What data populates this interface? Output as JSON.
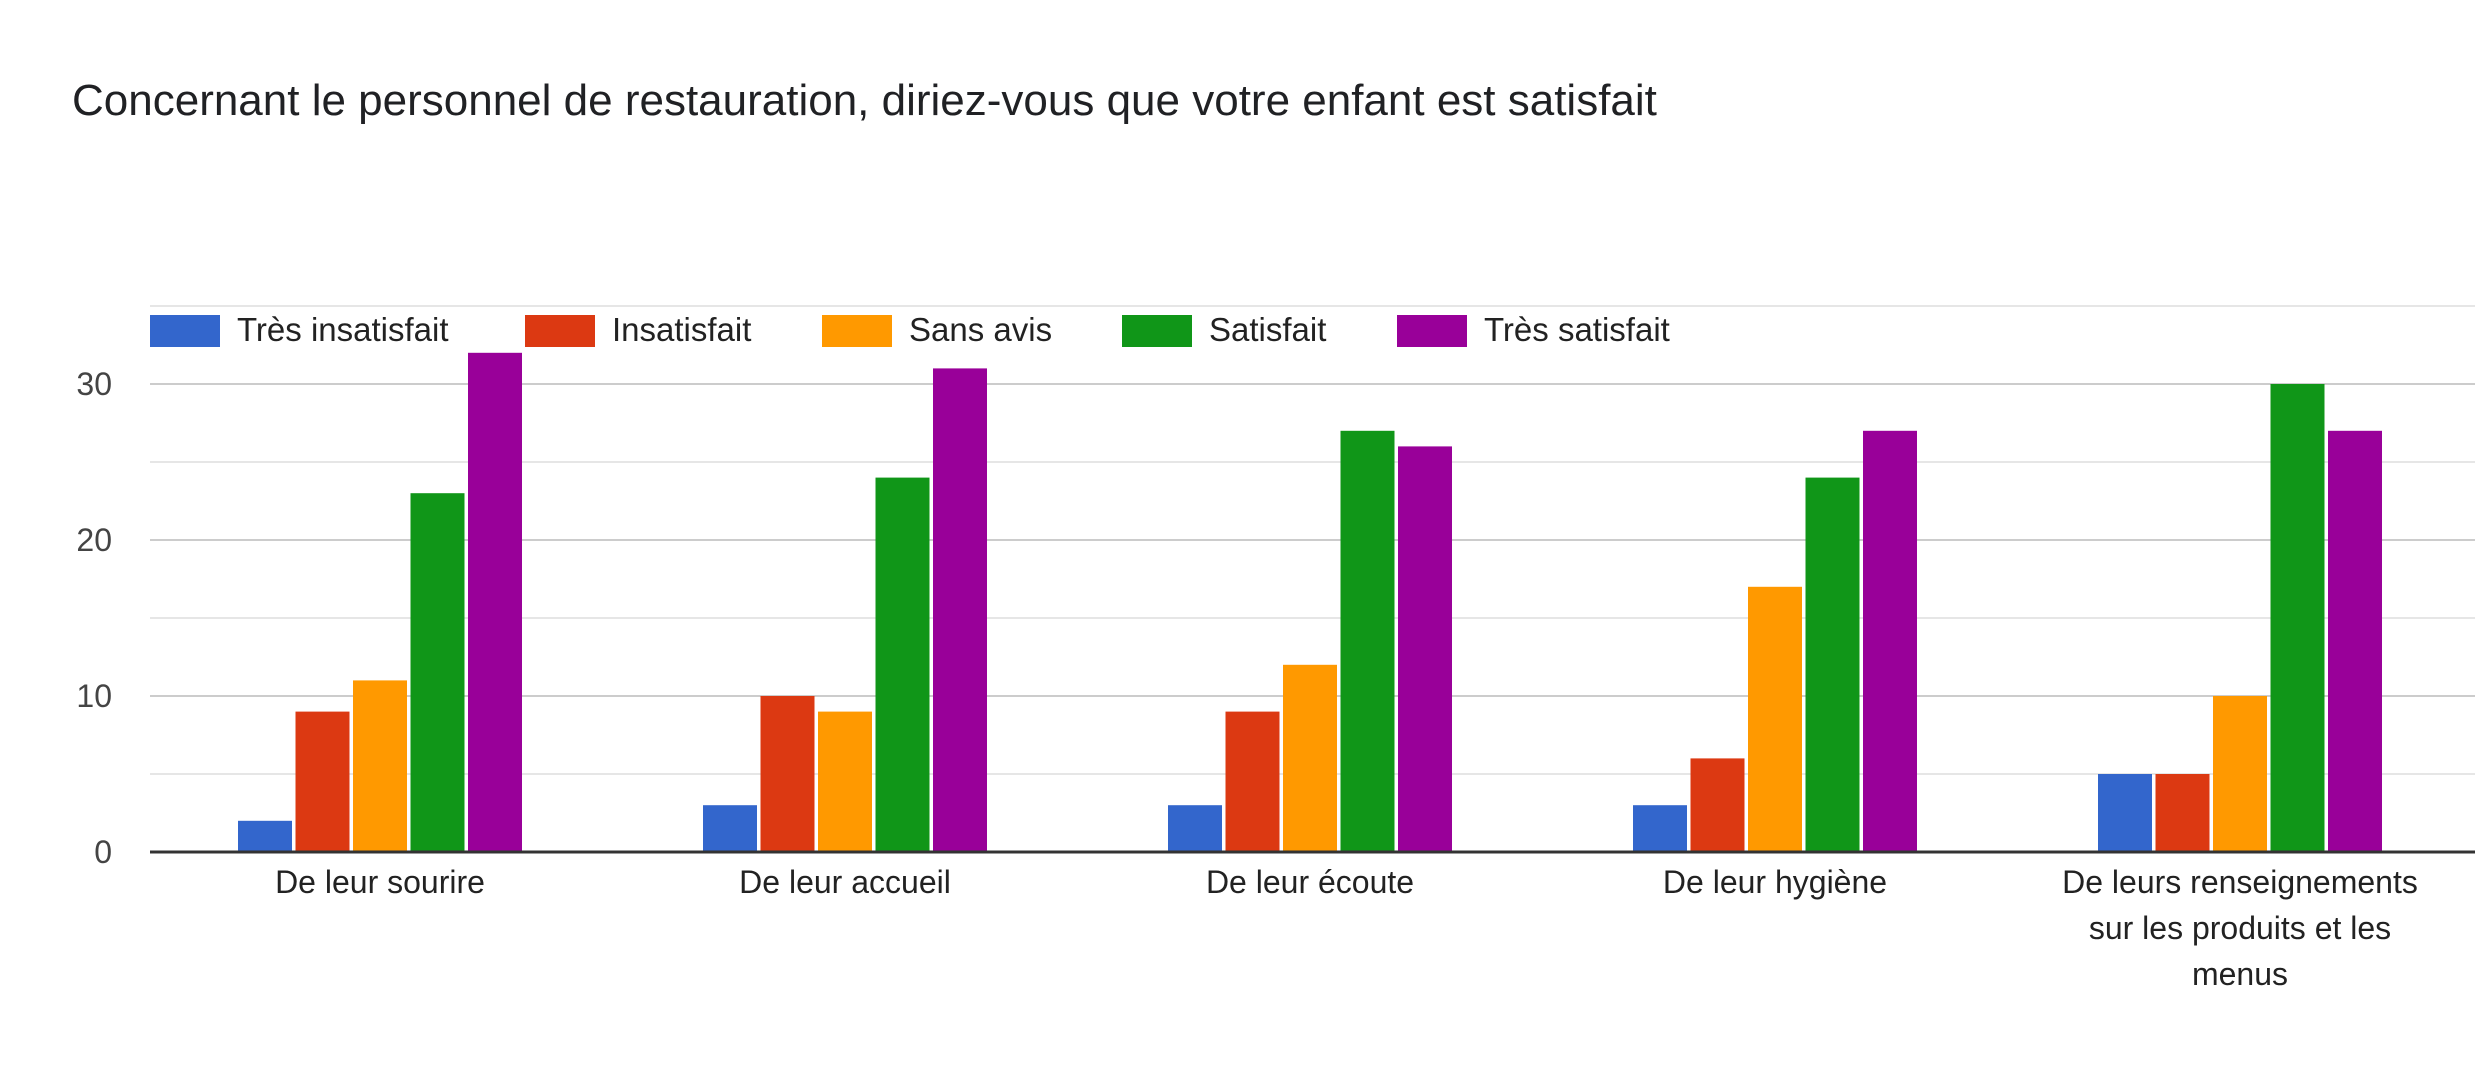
{
  "chart_data": {
    "type": "bar",
    "title": "Concernant le personnel de restauration, diriez-vous que votre enfant est satisfait",
    "xlabel": "",
    "ylabel": "",
    "ylim": [
      0,
      35
    ],
    "yticks": [
      0,
      10,
      20,
      30
    ],
    "grid": true,
    "legend_position": "top-left",
    "categories": [
      "De leur sourire",
      "De leur accueil",
      "De leur écoute",
      "De leur hygiène",
      "De leurs renseignements sur les produits et les menus"
    ],
    "category_lines": [
      [
        "De leur sourire"
      ],
      [
        "De leur accueil"
      ],
      [
        "De leur écoute"
      ],
      [
        "De leur hygiène"
      ],
      [
        "De leurs renseignements",
        "sur les produits et les",
        "menus"
      ]
    ],
    "series": [
      {
        "name": "Très insatisfait",
        "color": "#3366cc",
        "values": [
          2,
          3,
          3,
          3,
          5
        ]
      },
      {
        "name": "Insatisfait",
        "color": "#dc3912",
        "values": [
          9,
          10,
          9,
          6,
          5
        ]
      },
      {
        "name": "Sans avis",
        "color": "#ff9900",
        "values": [
          11,
          9,
          12,
          17,
          10
        ]
      },
      {
        "name": "Satisfait",
        "color": "#109618",
        "values": [
          23,
          24,
          27,
          24,
          30
        ]
      },
      {
        "name": "Très satisfait",
        "color": "#990099",
        "values": [
          32,
          31,
          26,
          27,
          27
        ]
      }
    ]
  }
}
